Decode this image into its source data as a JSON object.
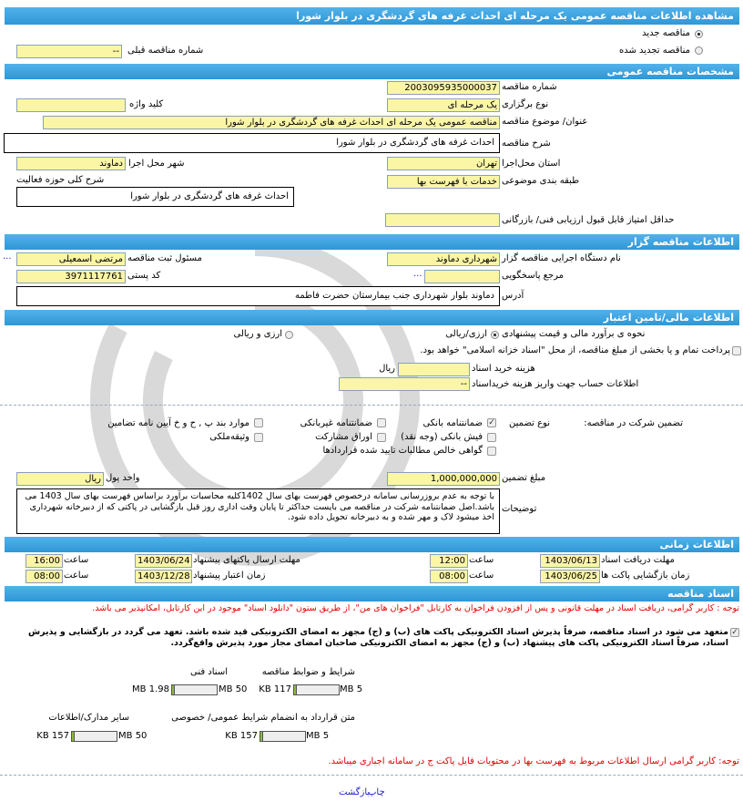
{
  "title": "مشاهده اطلاعات مناقصه  عمومی یک مرحله ای احداث غرفه های گردشگری در بلوار شورا",
  "tender_type": {
    "new": "مناقصه جدید",
    "renewed": "مناقصه تجدید شده",
    "selected": "new",
    "prev_number_label": "شماره  مناقصه  قبلی",
    "prev_number": "--"
  },
  "general": {
    "header": "مشخصات مناقصه  عمومی",
    "number_label": "شماره  مناقصه",
    "number": "2003095935000037",
    "holding_type_label": "نوع  برگزاری",
    "holding_type": "یک مرحله ای",
    "keyword_label": "کلید واژه",
    "keyword": "",
    "subject_label": "عنوان/ موضوع  مناقصه",
    "subject": "مناقصه عمومی یک مرحله ای احداث غرفه های گردشگری در بلوار شورا",
    "description_label": "شرح  مناقصه",
    "description": "احداث غرفه های  گردشگری  در  بلوار  شورا",
    "province_label": "استان محل‌اجرا",
    "province": "تهران",
    "city_label": "شهر محل اجرا",
    "city": "دماوند",
    "category_label": "طبقه  بندی  موضوعی",
    "category": "خدمات با فهرست بها",
    "activity_label": "شرح کلی حوزه فعالیت",
    "activity": "احداث غرفه های  گردشگری  در  بلوار  شورا",
    "min_score_label": "حداقل  امتیاز قابل قبول  ارزیابی فنی/ بازرگانی",
    "min_score": ""
  },
  "organizer": {
    "header": "اطلاعات مناقصه گزار",
    "org_label": "نام  دستگاه  اجرایی  مناقصه گزار",
    "org": "شهرداری دماوند",
    "registrar_label": "مسئول  ثبت  مناقصه",
    "registrar": "مرتضی اسمعیلی",
    "reference_label": "مرجع پاسخگویی",
    "reference": "",
    "postal_label": "کد  پستی",
    "postal": "3971117761",
    "address_label": "آدرس",
    "address": "دماوند بلوار شهرداری  جنب  بیمارستان  حضرت  فاطمه",
    "more": "..."
  },
  "finance": {
    "header": "اطلاعات مالی/تامین اعتبار",
    "estimate_label": "نحوه ی برآورد مالی و قیمت  پیشنهادی",
    "opt1": "ارزی/ریالی",
    "opt2": "ارزی و ریالی",
    "selected": "opt1",
    "treasury_label": "پرداخت تمام و یا بخشی از مبلغ  مناقصه، از محل \"اسناد خزانه اسلامی\" خواهد بود.",
    "treasury_checked": false,
    "doc_cost_label": "هزینه خرید  اسناد",
    "doc_cost": "",
    "doc_cost_unit": "ریال",
    "account_label": "اطلاعات حساب جهت واریز  هزینه خریداسناد",
    "account": "--",
    "guarantee_label": "تضمین شرکت  در  مناقصه:",
    "guarantee_type_label": "نوع  تضمین",
    "guarantee_options": [
      {
        "label": "ضمانتنامه بانکی",
        "checked": true
      },
      {
        "label": "ضمانتنامه غیربانکی",
        "checked": false
      },
      {
        "label": "موارد بند پ , ح و خ آیین نامه تضامین",
        "checked": false
      },
      {
        "label": "فیش بانکی (وجه نقد)",
        "checked": false
      },
      {
        "label": "اوراق  مشارکت",
        "checked": false
      },
      {
        "label": "وثیقه‌ملکی",
        "checked": false
      },
      {
        "label": "گواهی  خالص  مطالبات  تایید شده  قراردادها",
        "checked": false
      }
    ],
    "amount_label": "مبلغ  تضمین",
    "amount": "1,000,000,000",
    "currency_label": "واحد پول",
    "currency": "ریال",
    "notes_label": "توضیحات",
    "notes": "با توجه به عدم  بروزرسانی سامانه  درخصوص فهرست  بهای سال 1402کلیه محاسبات برآورد براساس فهرست  بهای سال 1403 می باشد.اصل  ضمانتنامه شرکت  در  مناقصه می بایست حداکثر تا پایان وقت اداری روز قبل بازگشایی در پاکتی که از دبیرخانه  شهرداری اخذ میشود لاک و مهر شده و به  دبیرخانه تحویل داده شود."
  },
  "timing": {
    "header": "اطلاعات زمانی",
    "time_label": "ساعت",
    "doc_deadline_label": "مهلت  دریافت اسناد",
    "doc_deadline_date": "1403/06/13",
    "doc_deadline_time": "12:00",
    "submit_label": "مهلت ارسال  پاکتهای  پیشنهاد",
    "submit_date": "1403/06/24",
    "submit_time": "16:00",
    "opening_label": "زمان  بازگشایی پاکت ها",
    "opening_date": "1403/06/25",
    "opening_time": "08:00",
    "validity_label": "زمان  اعتبار  پیشنهاد",
    "validity_date": "1403/12/28",
    "validity_time": "08:00"
  },
  "documents": {
    "header": "اسناد مناقصه",
    "note1": "توجه : کاربر گرامی، دریافت اسناد در مهلت قانونی و پس از افزودن فراخوان به کارتابل \"فراخوان های من\"، از طریق ستون \"دانلود اسناد\" موجود در این کارتابل، امکانپذیر می باشد.",
    "commit": "متعهد می شود در اسناد مناقصه، صرفاً پذیرش اسناد الکترونیکی پاکت های (ب) و (ج) مجهز به امضای الکترونیکی قید شده باشد. تعهد می گردد در بازگشایی و پذیرش اسناد، صرفاً اسناد الکترونیکی پاکت های پیشنهاد (ب) و (ج) مجهز به امضای الکترونیکی صاحبان امضای مجاز مورد پذیرش واقع‌گردد.",
    "commit_checked": true,
    "files": [
      {
        "label": "شرایط و ضوابط  مناقصه",
        "size": "117 KB",
        "max": "5 MB",
        "fraction": 0.023
      },
      {
        "label": "اسناد فنی",
        "size": "1.98 MB",
        "max": "50 MB",
        "fraction": 0.04
      },
      {
        "label": "متن قرارداد به  انضمام شرایط عمومی/ خصوصی",
        "size": "157 KB",
        "max": "5 MB",
        "fraction": 0.031
      },
      {
        "label": "سایر مدارک/اطلاعات",
        "size": "157 KB",
        "max": "50 MB",
        "fraction": 0.003
      }
    ],
    "note2": "توجه: کاربر گرامی ارسال اطلاعات مربوط به فهرست بها در محتویات فایل پاکت ج در سامانه  اجباری میباشد."
  },
  "footer": {
    "print": "چاپ",
    "back": "بازگشت"
  }
}
